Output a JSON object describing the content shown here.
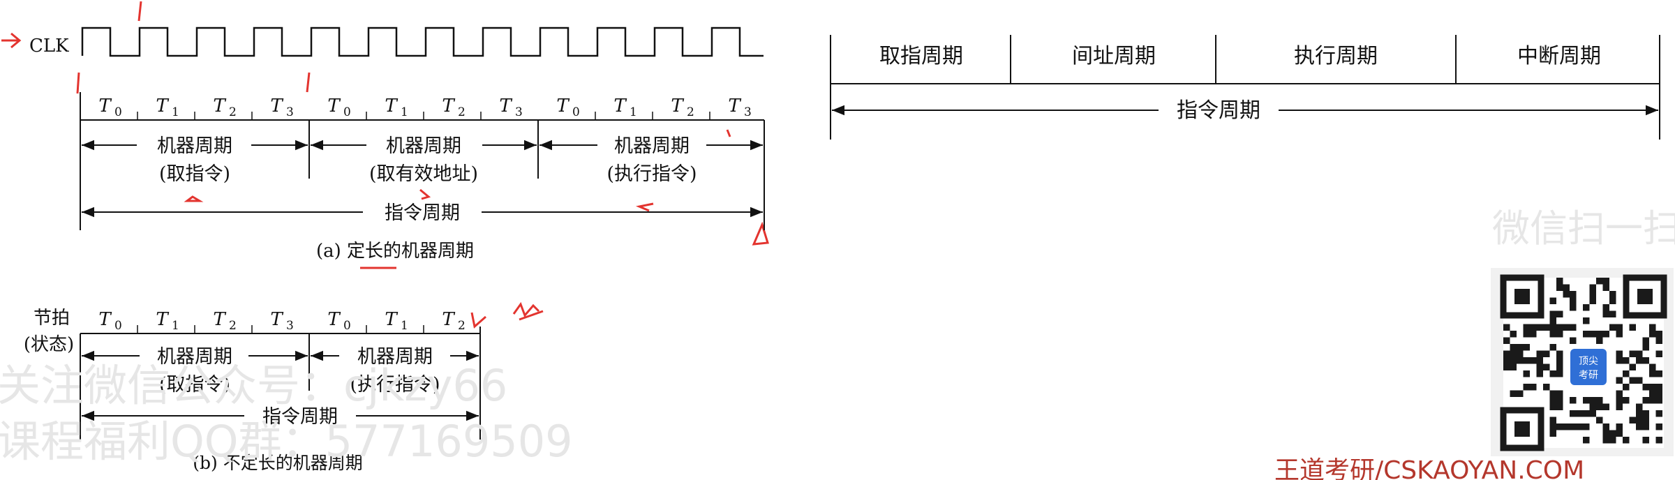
{
  "diagram_a": {
    "clk_label": "CLK",
    "beat_symbol": "T",
    "beat_subscripts": [
      "0",
      "1",
      "2",
      "3",
      "0",
      "1",
      "2",
      "3",
      "0",
      "1",
      "2",
      "3"
    ],
    "machine_cycle_label": "机器周期",
    "phases": [
      "(取指令)",
      "(取有效地址)",
      "(执行指令)"
    ],
    "instruction_cycle_label": "指令周期",
    "caption": "(a) 定长的机器周期"
  },
  "diagram_b": {
    "row_label_line1": "节拍",
    "row_label_line2": "(状态)",
    "beat_symbol": "T",
    "beat_subscripts": [
      "0",
      "1",
      "2",
      "3",
      "0",
      "1",
      "2"
    ],
    "machine_cycle_label": "机器周期",
    "phases": [
      "(取指令)",
      "(执行指令)"
    ],
    "instruction_cycle_label": "指令周期",
    "caption": "(b) 不定长的机器周期"
  },
  "diagram_c": {
    "cycles": [
      "取指周期",
      "间址周期",
      "执行周期",
      "中断周期"
    ],
    "instruction_cycle_label": "指令周期"
  },
  "annotation_colors": {
    "red": "#e3342f"
  },
  "watermarks": {
    "left_line1": "关注微信公众号：cjkzy66",
    "left_line2": "课程福利QQ群：577169509",
    "right_top": "微信扫一扫",
    "qr_badge_line1": "顶尖",
    "qr_badge_line2": "考研",
    "footer_site": "王道考研/CSKAOYAN.COM"
  }
}
